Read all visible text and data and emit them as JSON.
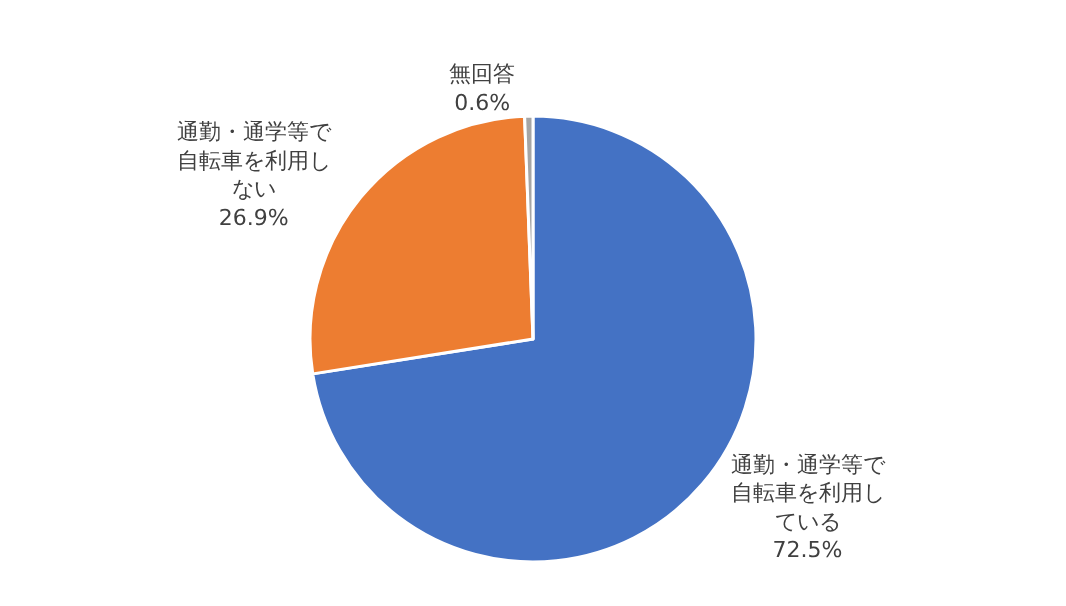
{
  "chart_data": {
    "type": "pie",
    "categories": [
      "通勤・通学等で自転車を利用している",
      "通勤・通学等で自転車を利用しない",
      "無回答"
    ],
    "values": [
      72.5,
      26.9,
      0.6
    ],
    "colors": [
      "#4472c4",
      "#ed7d31",
      "#a5a5a5"
    ],
    "value_labels": [
      "72.5%",
      "26.9%",
      "0.6%"
    ],
    "legend": false
  }
}
